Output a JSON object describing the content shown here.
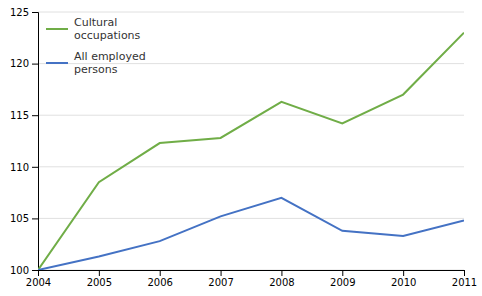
{
  "chart_data": {
    "type": "line",
    "x": [
      2004,
      2005,
      2006,
      2007,
      2008,
      2009,
      2010,
      2011
    ],
    "series": [
      {
        "name": "Cultural\noccupations",
        "color": "#70ad47",
        "values": [
          100.0,
          108.5,
          112.3,
          112.8,
          116.3,
          114.2,
          117.0,
          123.0
        ]
      },
      {
        "name": "All employed\npersons",
        "color": "#4472c4",
        "values": [
          100.0,
          101.3,
          102.8,
          105.2,
          107.0,
          103.8,
          103.3,
          104.8
        ]
      }
    ],
    "xlim": [
      2004,
      2011
    ],
    "xticks": [
      2004,
      2005,
      2006,
      2007,
      2008,
      2009,
      2010,
      2011
    ],
    "ylim": [
      100,
      125
    ],
    "yticks": [
      100,
      105,
      110,
      115,
      120,
      125
    ],
    "grid": true,
    "legend": "upper left"
  }
}
